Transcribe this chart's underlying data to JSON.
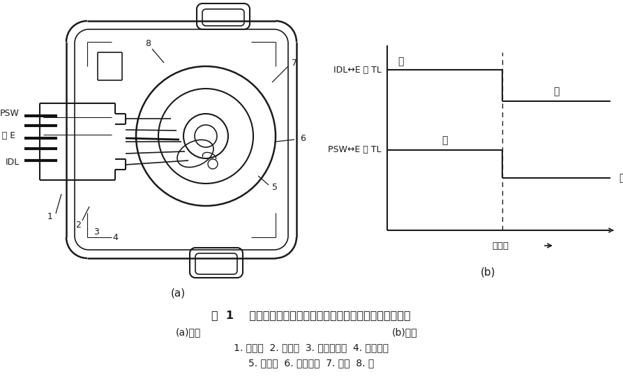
{
  "title_line1": "图  1    开关量输出型节气门位置传感器的结构与电压输出信号",
  "title_line2a": "(a)结构",
  "title_line2b": "(b)特性",
  "title_line3": "1. 连接器  2. 动触点  3. 全负荷触点  4. 怚速触点",
  "title_line4": "5. 控制臂  6. 节气门轴  7. 凸轮  8. 槽",
  "label_a": "(a)",
  "label_b": "(b)",
  "psw_label": "PSW",
  "tl_label": "TL 或 E",
  "idl_label": "IDL",
  "idl_signal_label": "IDL↔E 或 TL",
  "psw_signal_label": "PSW↔E 或 TL",
  "on1": "通",
  "off1": "断",
  "on2": "通",
  "off2": "断",
  "xaxis_label": "节气门",
  "bg_color": "#ffffff",
  "line_color": "#1a1a1a",
  "text_color": "#1a1a1a"
}
